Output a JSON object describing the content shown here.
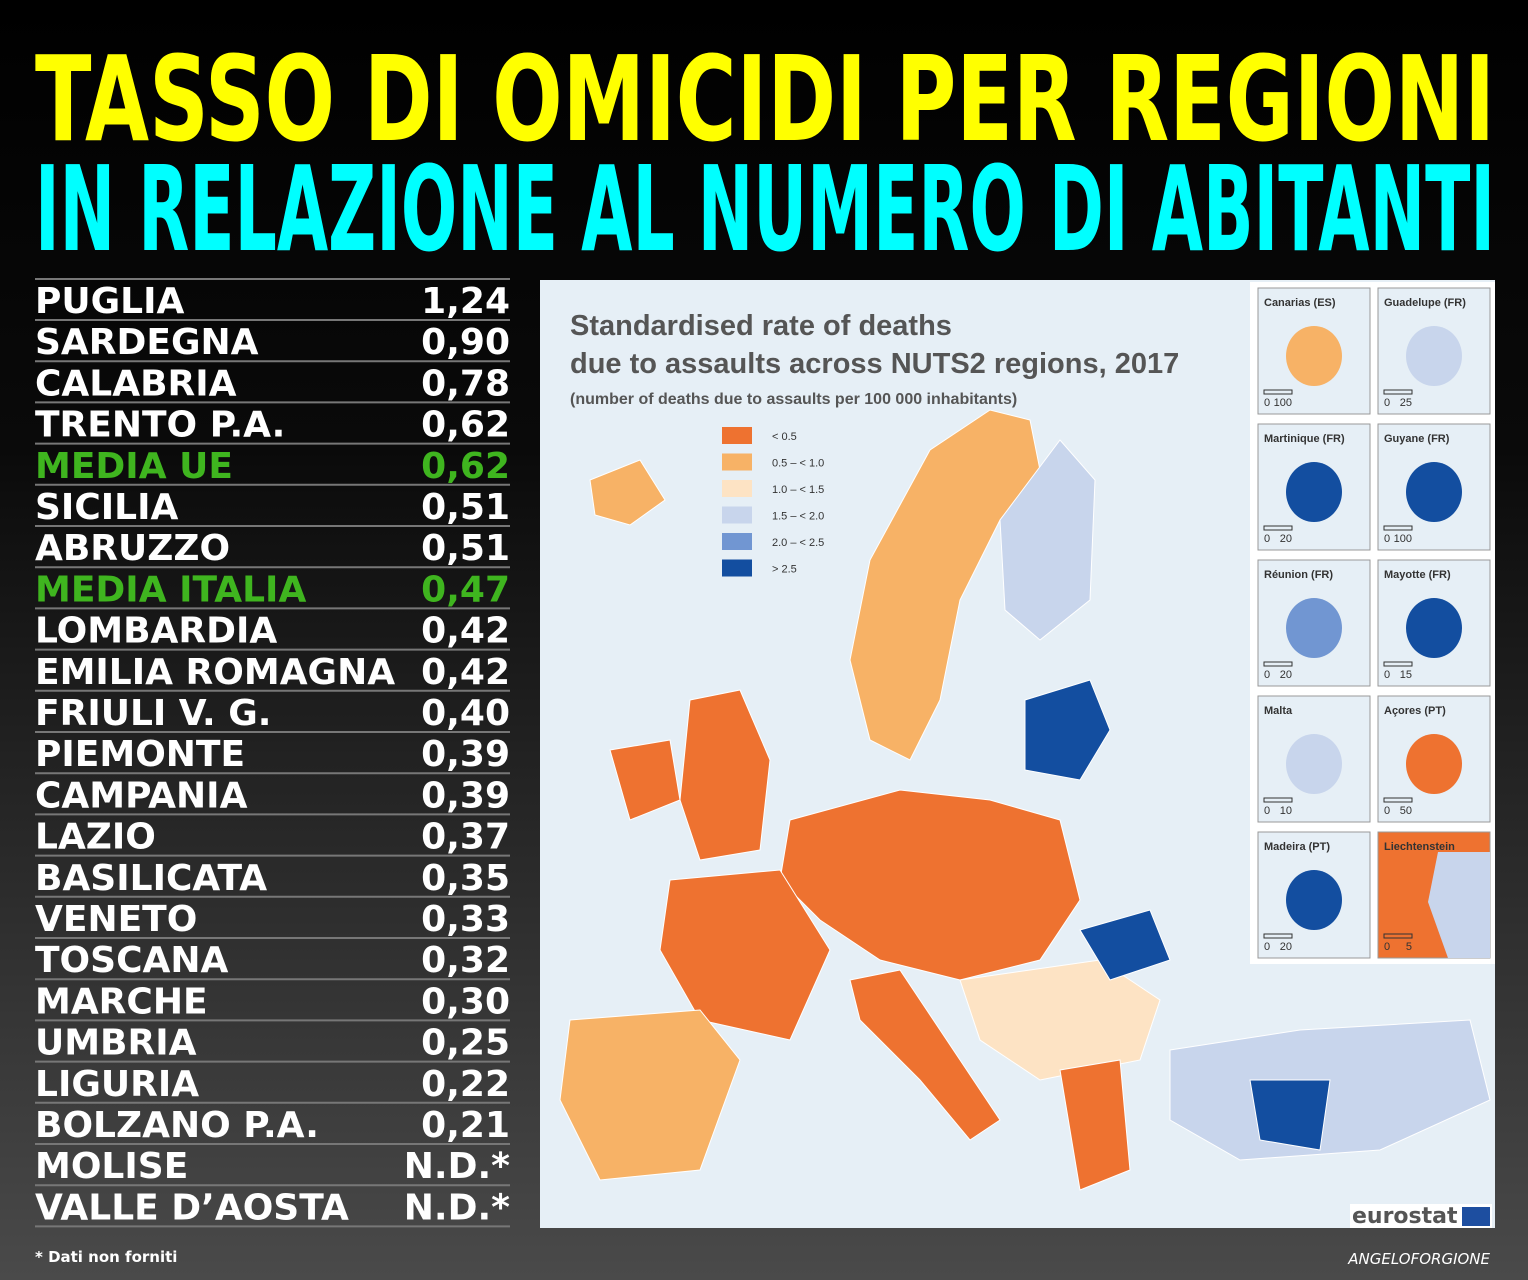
{
  "header": {
    "title": "TASSO DI OMICIDI PER REGIONI",
    "subtitle": "IN RELAZIONE AL NUMERO DI ABITANTI"
  },
  "table": {
    "rows": [
      {
        "name": "PUGLIA",
        "value": "1,24"
      },
      {
        "name": "SARDEGNA",
        "value": "0,90"
      },
      {
        "name": "CALABRIA",
        "value": "0,78"
      },
      {
        "name": "TRENTO P.A.",
        "value": "0,62"
      },
      {
        "name": "MEDIA UE",
        "value": "0,62",
        "highlight": true
      },
      {
        "name": "SICILIA",
        "value": "0,51"
      },
      {
        "name": "ABRUZZO",
        "value": "0,51"
      },
      {
        "name": "MEDIA ITALIA",
        "value": "0,47",
        "highlight": true
      },
      {
        "name": "LOMBARDIA",
        "value": "0,42"
      },
      {
        "name": "EMILIA ROMAGNA",
        "value": "0,42"
      },
      {
        "name": "FRIULI V. G.",
        "value": "0,40"
      },
      {
        "name": "PIEMONTE",
        "value": "0,39"
      },
      {
        "name": "CAMPANIA",
        "value": "0,39"
      },
      {
        "name": "LAZIO",
        "value": "0,37"
      },
      {
        "name": "BASILICATA",
        "value": "0,35"
      },
      {
        "name": "VENETO",
        "value": "0,33"
      },
      {
        "name": "TOSCANA",
        "value": "0,32"
      },
      {
        "name": "MARCHE",
        "value": "0,30"
      },
      {
        "name": "UMBRIA",
        "value": "0,25"
      },
      {
        "name": "LIGURIA",
        "value": "0,22"
      },
      {
        "name": "BOLZANO P.A.",
        "value": "0,21"
      },
      {
        "name": "MOLISE",
        "value": "N.D.*"
      },
      {
        "name": "VALLE D’AOSTA",
        "value": "N.D.*"
      }
    ]
  },
  "footnote": "* Dati non forniti",
  "credit": "ANGELOFORGIONE",
  "map": {
    "title_line1": "Standardised rate of deaths",
    "title_line2": "due to assaults across NUTS2 regions, 2017",
    "subtitle": "(number of deaths due to assaults per 100 000 inhabitants)",
    "legend": [
      {
        "label": "< 0.5",
        "color": "#ee7230"
      },
      {
        "label": "0.5 – < 1.0",
        "color": "#f7b266"
      },
      {
        "label": "1.0 – < 1.5",
        "color": "#fde3c4"
      },
      {
        "label": "1.5 – < 2.0",
        "color": "#c8d5ec"
      },
      {
        "label": "2.0 – < 2.5",
        "color": "#7196d2"
      },
      {
        "label": "> 2.5",
        "color": "#134ea0"
      }
    ],
    "insets": [
      {
        "name": "Canarias (ES)",
        "scale": [
          "0",
          "100"
        ]
      },
      {
        "name": "Guadelupe (FR)",
        "scale": [
          "0",
          "25"
        ]
      },
      {
        "name": "Martinique (FR)",
        "scale": [
          "0",
          "20"
        ]
      },
      {
        "name": "Guyane (FR)",
        "scale": [
          "0",
          "100"
        ]
      },
      {
        "name": "Réunion (FR)",
        "scale": [
          "0",
          "20"
        ]
      },
      {
        "name": "Mayotte (FR)",
        "scale": [
          "0",
          "15"
        ]
      },
      {
        "name": "Malta",
        "scale": [
          "0",
          "10"
        ]
      },
      {
        "name": "Açores (PT)",
        "scale": [
          "0",
          "50"
        ]
      },
      {
        "name": "Madeira (PT)",
        "scale": [
          "0",
          "20"
        ]
      },
      {
        "name": "Liechtenstein",
        "scale": [
          "0",
          "5"
        ]
      }
    ],
    "source": "eurostat"
  }
}
